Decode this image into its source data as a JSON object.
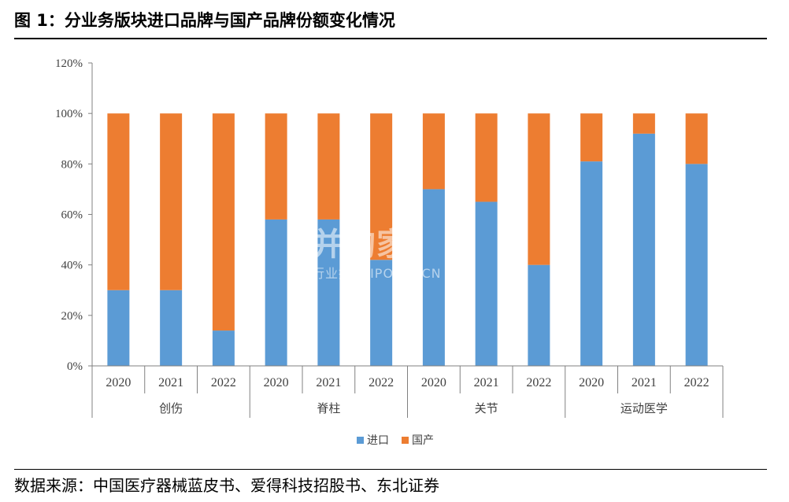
{
  "figure": {
    "title": "图 1：分业务版块进口品牌与国产品牌份额变化情况",
    "source": "数据来源：中国医疗器械蓝皮书、爱得科技招股书、东北证券"
  },
  "watermark": {
    "main": "并购家",
    "sub": "行业报告 IPOIPO.CN"
  },
  "colors": {
    "import": "#5B9BD5",
    "domestic": "#ED7D31",
    "axis": "#808080",
    "text": "#404040"
  },
  "chart_data": {
    "type": "bar",
    "stacked": true,
    "groups": [
      "创伤",
      "脊柱",
      "关节",
      "运动医学"
    ],
    "categories": [
      "2020",
      "2021",
      "2022",
      "2020",
      "2021",
      "2022",
      "2020",
      "2021",
      "2022",
      "2020",
      "2021",
      "2022"
    ],
    "series": [
      {
        "name": "进口",
        "values": [
          30,
          30,
          14,
          58,
          58,
          42,
          70,
          65,
          40,
          81,
          92,
          80
        ]
      },
      {
        "name": "国产",
        "values": [
          70,
          70,
          86,
          42,
          42,
          58,
          30,
          35,
          60,
          19,
          8,
          20
        ]
      }
    ],
    "yticks": [
      "0%",
      "20%",
      "40%",
      "60%",
      "80%",
      "100%",
      "120%"
    ],
    "ylim": [
      0,
      120
    ],
    "grid": false,
    "legend": "bottom"
  }
}
